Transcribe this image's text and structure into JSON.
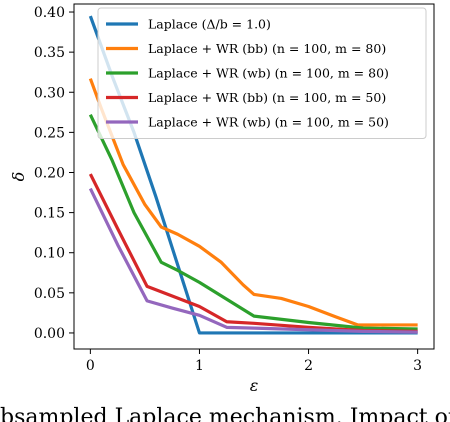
{
  "chart_data": {
    "type": "line",
    "title": "",
    "xlabel": "ε",
    "ylabel": "δ",
    "xlim": [
      -0.15,
      3.15
    ],
    "ylim": [
      -0.02,
      0.41
    ],
    "xticks": [
      0,
      1,
      2,
      3
    ],
    "xtick_labels": [
      "0",
      "1",
      "2",
      "3"
    ],
    "yticks": [
      0.0,
      0.05,
      0.1,
      0.15,
      0.2,
      0.25,
      0.3,
      0.35,
      0.4
    ],
    "ytick_labels": [
      "0.00",
      "0.05",
      "0.10",
      "0.15",
      "0.20",
      "0.25",
      "0.30",
      "0.35",
      "0.40"
    ],
    "grid": false,
    "legend_position": "top-right",
    "series": [
      {
        "name": "Laplace (Δ/b = 1.0)",
        "color": "#1f77b4",
        "x": [
          0,
          0.2,
          0.4,
          0.6,
          0.8,
          1.0,
          1.5,
          2.0,
          2.5,
          3.0
        ],
        "y": [
          0.395,
          0.32,
          0.25,
          0.17,
          0.085,
          0.0,
          0.0,
          0.0,
          0.0,
          0.0
        ]
      },
      {
        "name": "Laplace + WR (bb) (n = 100, m = 80)",
        "color": "#ff7f0e",
        "x": [
          0,
          0.1,
          0.3,
          0.5,
          0.65,
          0.8,
          1.0,
          1.2,
          1.4,
          1.5,
          1.75,
          2.0,
          2.25,
          2.45,
          3.0
        ],
        "y": [
          0.317,
          0.28,
          0.21,
          0.16,
          0.132,
          0.123,
          0.108,
          0.088,
          0.06,
          0.048,
          0.043,
          0.033,
          0.02,
          0.01,
          0.01
        ]
      },
      {
        "name": "Laplace + WR (wb) (n = 100, m = 80)",
        "color": "#2ca02c",
        "x": [
          0,
          0.2,
          0.4,
          0.65,
          0.8,
          1.0,
          1.25,
          1.5,
          2.0,
          2.5,
          3.0
        ],
        "y": [
          0.272,
          0.215,
          0.15,
          0.088,
          0.078,
          0.063,
          0.042,
          0.021,
          0.013,
          0.006,
          0.005
        ]
      },
      {
        "name": "Laplace + WR (bb) (n = 100, m = 50)",
        "color": "#d62728",
        "x": [
          0,
          0.25,
          0.52,
          0.75,
          1.0,
          1.25,
          1.5,
          2.0,
          2.5,
          3.0
        ],
        "y": [
          0.198,
          0.13,
          0.058,
          0.046,
          0.033,
          0.014,
          0.012,
          0.007,
          0.003,
          0.002
        ]
      },
      {
        "name": "Laplace + WR (wb) (n = 100, m = 50)",
        "color": "#9467bd",
        "x": [
          0,
          0.25,
          0.52,
          0.75,
          1.0,
          1.25,
          1.5,
          2.0,
          2.5,
          3.0
        ],
        "y": [
          0.18,
          0.11,
          0.04,
          0.031,
          0.022,
          0.007,
          0.006,
          0.004,
          0.002,
          0.001
        ]
      }
    ]
  },
  "caption": {
    "text": "bsampled Laplace mechanism. Impact of"
  }
}
